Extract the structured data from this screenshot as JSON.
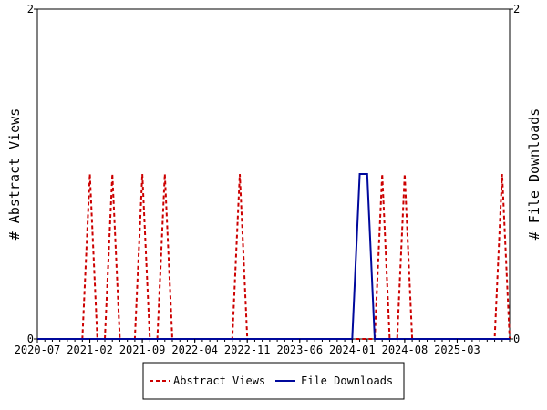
{
  "chart_data": {
    "type": "line",
    "xlabel": "",
    "ylabel_left": "# Abstract Views",
    "ylabel_right": "# File Downloads",
    "x_tick_labels": [
      "2020-07",
      "2021-02",
      "2021-09",
      "2022-04",
      "2022-11",
      "2023-06",
      "2024-01",
      "2024-08",
      "2025-03"
    ],
    "ylim": [
      0,
      2
    ],
    "y_tick_labels_left": [
      "0",
      "2"
    ],
    "y_tick_labels_right": [
      "0",
      "2"
    ],
    "grid": false,
    "legend_position": "bottom-center",
    "months_total": 63,
    "series": [
      {
        "name": "Abstract Views",
        "color": "#cc0000",
        "dash": true,
        "axis": "left",
        "x": [
          "2020-07",
          "2020-08",
          "2020-09",
          "2020-10",
          "2020-11",
          "2020-12",
          "2021-01",
          "2021-02",
          "2021-03",
          "2021-04",
          "2021-05",
          "2021-06",
          "2021-07",
          "2021-08",
          "2021-09",
          "2021-10",
          "2021-11",
          "2021-12",
          "2022-01",
          "2022-02",
          "2022-03",
          "2022-04",
          "2022-05",
          "2022-06",
          "2022-07",
          "2022-08",
          "2022-09",
          "2022-10",
          "2022-11",
          "2022-12",
          "2023-01",
          "2023-02",
          "2023-03",
          "2023-04",
          "2023-05",
          "2023-06",
          "2023-07",
          "2023-08",
          "2023-09",
          "2023-10",
          "2023-11",
          "2023-12",
          "2024-01",
          "2024-02",
          "2024-03",
          "2024-04",
          "2024-05",
          "2024-06",
          "2024-07",
          "2024-08",
          "2024-09",
          "2024-10",
          "2024-11",
          "2024-12",
          "2025-01",
          "2025-02",
          "2025-03",
          "2025-04",
          "2025-05",
          "2025-06",
          "2025-07",
          "2025-08",
          "2025-09",
          "2025-10"
        ],
        "values": [
          0,
          0,
          0,
          0,
          0,
          0,
          0,
          1,
          0,
          0,
          1,
          0,
          0,
          0,
          1,
          0,
          0,
          1,
          0,
          0,
          0,
          0,
          0,
          0,
          0,
          0,
          0,
          1,
          0,
          0,
          0,
          0,
          0,
          0,
          0,
          0,
          0,
          0,
          0,
          0,
          0,
          0,
          0,
          0,
          0,
          0,
          1,
          0,
          0,
          1,
          0,
          0,
          0,
          0,
          0,
          0,
          0,
          0,
          0,
          0,
          0,
          0,
          1,
          0
        ]
      },
      {
        "name": "File Downloads",
        "color": "#00099c",
        "dash": false,
        "axis": "right",
        "x": [
          "2020-07",
          "2020-08",
          "2020-09",
          "2020-10",
          "2020-11",
          "2020-12",
          "2021-01",
          "2021-02",
          "2021-03",
          "2021-04",
          "2021-05",
          "2021-06",
          "2021-07",
          "2021-08",
          "2021-09",
          "2021-10",
          "2021-11",
          "2021-12",
          "2022-01",
          "2022-02",
          "2022-03",
          "2022-04",
          "2022-05",
          "2022-06",
          "2022-07",
          "2022-08",
          "2022-09",
          "2022-10",
          "2022-11",
          "2022-12",
          "2023-01",
          "2023-02",
          "2023-03",
          "2023-04",
          "2023-05",
          "2023-06",
          "2023-07",
          "2023-08",
          "2023-09",
          "2023-10",
          "2023-11",
          "2023-12",
          "2024-01",
          "2024-02",
          "2024-03",
          "2024-04",
          "2024-05",
          "2024-06",
          "2024-07",
          "2024-08",
          "2024-09",
          "2024-10",
          "2024-11",
          "2024-12",
          "2025-01",
          "2025-02",
          "2025-03",
          "2025-04",
          "2025-05",
          "2025-06",
          "2025-07",
          "2025-08",
          "2025-09",
          "2025-10"
        ],
        "values": [
          0,
          0,
          0,
          0,
          0,
          0,
          0,
          0,
          0,
          0,
          0,
          0,
          0,
          0,
          0,
          0,
          0,
          0,
          0,
          0,
          0,
          0,
          0,
          0,
          0,
          0,
          0,
          0,
          0,
          0,
          0,
          0,
          0,
          0,
          0,
          0,
          0,
          0,
          0,
          0,
          0,
          0,
          0,
          1,
          1,
          0,
          0,
          0,
          0,
          0,
          0,
          0,
          0,
          0,
          0,
          0,
          0,
          0,
          0,
          0,
          0,
          0,
          0,
          0
        ]
      }
    ]
  }
}
